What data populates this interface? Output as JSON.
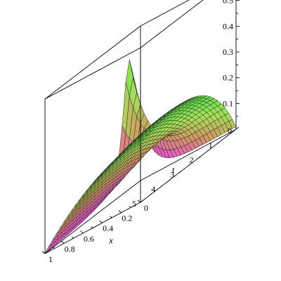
{
  "chart_data": {
    "type": "surface",
    "title": "",
    "xlabel": "x",
    "ylabel": "t",
    "zlabel": "",
    "xlim": [
      0,
      1
    ],
    "tlim": [
      0,
      5
    ],
    "zlim": [
      0,
      0.6
    ],
    "x_ticks": [
      "0",
      "0.2",
      "0.4",
      "0.6",
      "0.8",
      "1"
    ],
    "t_ticks": [
      "0",
      "1",
      "2",
      "3",
      "4",
      "5"
    ],
    "z_ticks": [
      "0.1",
      "0.2",
      "0.3",
      "0.4",
      "0.5"
    ],
    "grid_resolution": {
      "x": 26,
      "t": 26
    },
    "colormap": [
      "#bf45f0",
      "#e858c8",
      "#cf9a62",
      "#a8e05a",
      "#6ee04e"
    ],
    "sample_values": [
      {
        "x": 1,
        "t": 0,
        "z": 0.2
      },
      {
        "x": 1,
        "t": 0.6,
        "z": 0.59
      },
      {
        "x": 0,
        "t": 0,
        "z": 0.01
      }
    ]
  }
}
